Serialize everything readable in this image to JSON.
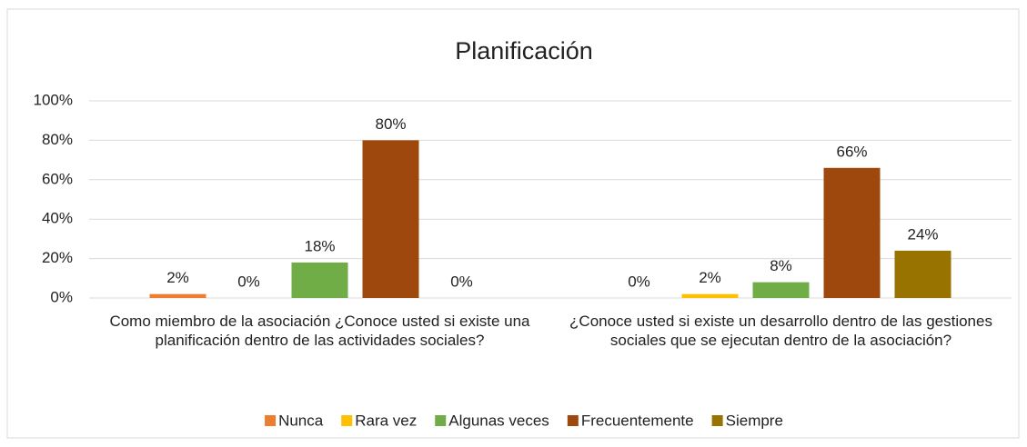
{
  "chart_data": {
    "type": "bar",
    "title": "Planificación",
    "categories": [
      "Como miembro de la asociación ¿Conoce usted si existe una planificación dentro de las actividades sociales?",
      "¿Conoce usted si existe un desarrollo dentro de las gestiones sociales que se ejecutan dentro de la asociación?"
    ],
    "series": [
      {
        "name": "Nunca",
        "color": "#ed7d31",
        "values": [
          2,
          0
        ],
        "value_labels": [
          "2%",
          "0%"
        ]
      },
      {
        "name": "Rara vez",
        "color": "#ffc000",
        "values": [
          0,
          2
        ],
        "value_labels": [
          "0%",
          "2%"
        ]
      },
      {
        "name": "Algunas veces",
        "color": "#70ad47",
        "values": [
          18,
          8
        ],
        "value_labels": [
          "18%",
          "8%"
        ]
      },
      {
        "name": "Frecuentemente",
        "color": "#9e480e",
        "values": [
          80,
          66
        ],
        "value_labels": [
          "80%",
          "66%"
        ]
      },
      {
        "name": "Siempre",
        "color": "#997300",
        "values": [
          0,
          24
        ],
        "value_labels": [
          "0%",
          "24%"
        ]
      }
    ],
    "ylim": [
      0,
      100
    ],
    "yticks": [
      {
        "value": 0,
        "label": "0%"
      },
      {
        "value": 20,
        "label": "20%"
      },
      {
        "value": 40,
        "label": "40%"
      },
      {
        "value": 60,
        "label": "60%"
      },
      {
        "value": 80,
        "label": "80%"
      },
      {
        "value": 100,
        "label": "100%"
      }
    ],
    "grid": true,
    "legend": "bottom"
  }
}
